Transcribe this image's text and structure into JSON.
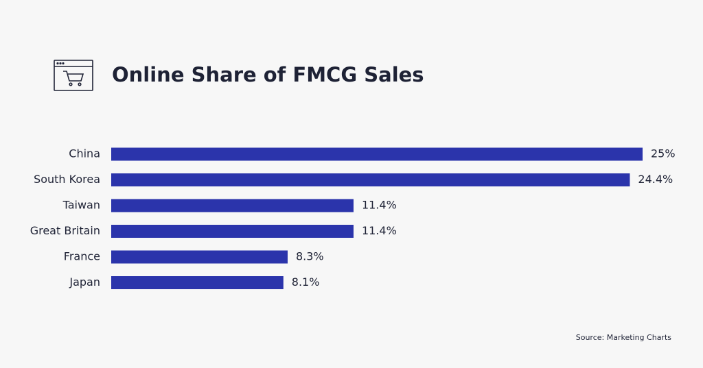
{
  "chart_data": {
    "type": "hbar",
    "title": "Online Share of FMCG Sales",
    "categories": [
      "China",
      "South Korea",
      "Taiwan",
      "Great Britain",
      "France",
      "Japan"
    ],
    "values": [
      25,
      24.4,
      11.4,
      11.4,
      8.3,
      8.1
    ],
    "value_labels": [
      "25%",
      "24.4%",
      "11.4%",
      "11.4%",
      "8.3%",
      "8.1%"
    ],
    "color": "#2b34ab",
    "source": "Source: Marketing Charts"
  }
}
